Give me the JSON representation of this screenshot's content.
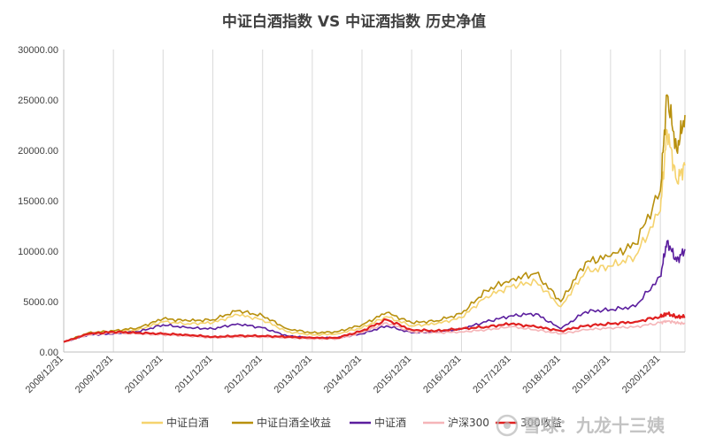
{
  "chart_data": {
    "type": "line",
    "title": "中证白酒指数 VS 中证酒指数 历史净值",
    "xlabel": "",
    "ylabel": "",
    "ylim": [
      0,
      30000
    ],
    "yticks": [
      "0.00",
      "5000.00",
      "10000.00",
      "15000.00",
      "20000.00",
      "25000.00",
      "30000.00"
    ],
    "xticks": [
      "2008/12/31",
      "2009/12/31",
      "2010/12/31",
      "2011/12/31",
      "2012/12/31",
      "2013/12/31",
      "2014/12/31",
      "2015/12/31",
      "2016/12/31",
      "2017/12/31",
      "2018/12/31",
      "2019/12/31",
      "2020/12/31"
    ],
    "grid": "vertical",
    "legend_position": "bottom",
    "x": [
      "2008/12/31",
      "2009/06/30",
      "2009/12/31",
      "2010/06/30",
      "2010/12/31",
      "2011/06/30",
      "2011/12/31",
      "2012/06/30",
      "2012/12/31",
      "2013/06/30",
      "2013/12/31",
      "2014/06/30",
      "2014/12/31",
      "2015/06/30",
      "2015/12/31",
      "2016/06/30",
      "2016/12/31",
      "2017/06/30",
      "2017/12/31",
      "2018/06/30",
      "2018/12/31",
      "2019/06/30",
      "2019/12/31",
      "2020/06/30",
      "2020/12/31",
      "2021/02/18",
      "2021/04/30",
      "2021/06/30"
    ],
    "series": [
      {
        "name": "中证白酒",
        "color": "#f5d36e",
        "values": [
          1000,
          1800,
          2000,
          2200,
          3000,
          2800,
          2900,
          3700,
          3200,
          2000,
          1700,
          1800,
          2400,
          3500,
          2600,
          2800,
          3400,
          5500,
          6500,
          7000,
          4500,
          8000,
          8500,
          9500,
          14000,
          22000,
          17000,
          18500
        ]
      },
      {
        "name": "中证白酒全收益",
        "color": "#b8900d",
        "values": [
          1000,
          1900,
          2100,
          2400,
          3300,
          3100,
          3200,
          4100,
          3600,
          2300,
          1900,
          2000,
          2700,
          3900,
          2900,
          3100,
          3800,
          6100,
          7200,
          7800,
          5000,
          8900,
          9500,
          10700,
          16000,
          25500,
          20000,
          23500
        ]
      },
      {
        "name": "中证酒",
        "color": "#5b1e9e",
        "values": [
          1000,
          1700,
          1800,
          2000,
          2700,
          2400,
          2300,
          2800,
          2400,
          1600,
          1400,
          1400,
          1800,
          2600,
          1900,
          2000,
          2300,
          3000,
          3600,
          3800,
          2300,
          4000,
          4200,
          4500,
          7500,
          11000,
          9000,
          10200
        ]
      },
      {
        "name": "沪深300",
        "color": "#f5b5b8",
        "values": [
          1000,
          1700,
          1900,
          1800,
          1700,
          1600,
          1400,
          1500,
          1500,
          1400,
          1300,
          1300,
          1900,
          2900,
          2000,
          1900,
          2000,
          2200,
          2500,
          2200,
          1800,
          2200,
          2400,
          2500,
          2900,
          3100,
          2900,
          2800
        ]
      },
      {
        "name": "300收益",
        "color": "#e02020",
        "values": [
          1000,
          1800,
          2000,
          1900,
          1800,
          1700,
          1500,
          1600,
          1600,
          1500,
          1400,
          1400,
          2100,
          3200,
          2200,
          2100,
          2300,
          2500,
          2800,
          2500,
          2100,
          2600,
          2800,
          3000,
          3500,
          3800,
          3500,
          3500
        ]
      }
    ]
  },
  "watermark": "雪球：九龙十三姨"
}
